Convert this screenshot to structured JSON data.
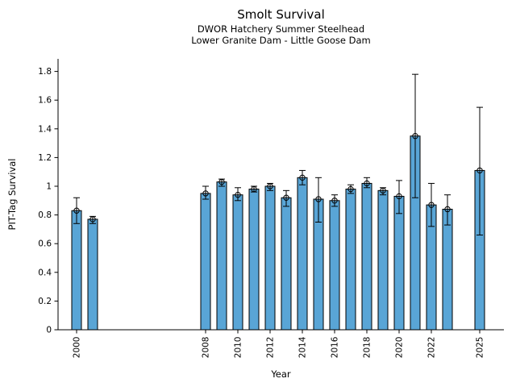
{
  "header": {
    "title": "Smolt Survival",
    "subtitle1": "DWOR Hatchery Summer Steelhead",
    "subtitle2": "Lower Granite Dam - Little Goose Dam"
  },
  "chart_data": {
    "type": "bar",
    "title": "Smolt Survival",
    "subtitle": [
      "DWOR Hatchery Summer Steelhead",
      "Lower Granite Dam - Little Goose Dam"
    ],
    "xlabel": "Year",
    "ylabel": "PIT-Tag Survival",
    "grid": false,
    "legend": null,
    "marker": "open-circle",
    "error_bars": true,
    "bar_color": "#59a5d6",
    "bar_edge_color": "#000000",
    "error_bar_color": "#000000",
    "background_color": "#ffffff",
    "ylim": [
      0,
      1.89
    ],
    "xlim_years": [
      1998.85,
      2026.5
    ],
    "y_ticks": [
      0,
      0.2,
      0.4,
      0.6,
      0.8,
      1,
      1.2,
      1.4,
      1.6,
      1.8
    ],
    "x_tick_labels": [
      "2000",
      "2008",
      "2010",
      "2012",
      "2014",
      "2016",
      "2018",
      "2020",
      "2022",
      "2025"
    ],
    "points": [
      {
        "year": 2000,
        "value": 0.83,
        "err_lo": 0.74,
        "err_hi": 0.92
      },
      {
        "year": 2001,
        "value": 0.77,
        "err_lo": 0.74,
        "err_hi": 0.79
      },
      {
        "year": 2008,
        "value": 0.95,
        "err_lo": 0.91,
        "err_hi": 1.0
      },
      {
        "year": 2009,
        "value": 1.03,
        "err_lo": 1.0,
        "err_hi": 1.05
      },
      {
        "year": 2010,
        "value": 0.94,
        "err_lo": 0.9,
        "err_hi": 0.99
      },
      {
        "year": 2011,
        "value": 0.98,
        "err_lo": 0.96,
        "err_hi": 1.0
      },
      {
        "year": 2012,
        "value": 1.0,
        "err_lo": 0.97,
        "err_hi": 1.02
      },
      {
        "year": 2013,
        "value": 0.92,
        "err_lo": 0.86,
        "err_hi": 0.97
      },
      {
        "year": 2014,
        "value": 1.06,
        "err_lo": 1.01,
        "err_hi": 1.11
      },
      {
        "year": 2015,
        "value": 0.91,
        "err_lo": 0.75,
        "err_hi": 1.06
      },
      {
        "year": 2016,
        "value": 0.9,
        "err_lo": 0.86,
        "err_hi": 0.94
      },
      {
        "year": 2017,
        "value": 0.98,
        "err_lo": 0.95,
        "err_hi": 1.01
      },
      {
        "year": 2018,
        "value": 1.02,
        "err_lo": 0.99,
        "err_hi": 1.06
      },
      {
        "year": 2019,
        "value": 0.97,
        "err_lo": 0.94,
        "err_hi": 0.99
      },
      {
        "year": 2020,
        "value": 0.93,
        "err_lo": 0.81,
        "err_hi": 1.04
      },
      {
        "year": 2021,
        "value": 1.35,
        "err_lo": 0.92,
        "err_hi": 1.78
      },
      {
        "year": 2022,
        "value": 0.87,
        "err_lo": 0.72,
        "err_hi": 1.02
      },
      {
        "year": 2023,
        "value": 0.84,
        "err_lo": 0.73,
        "err_hi": 0.94
      },
      {
        "year": 2025,
        "value": 1.11,
        "err_lo": 0.66,
        "err_hi": 1.55
      }
    ]
  }
}
